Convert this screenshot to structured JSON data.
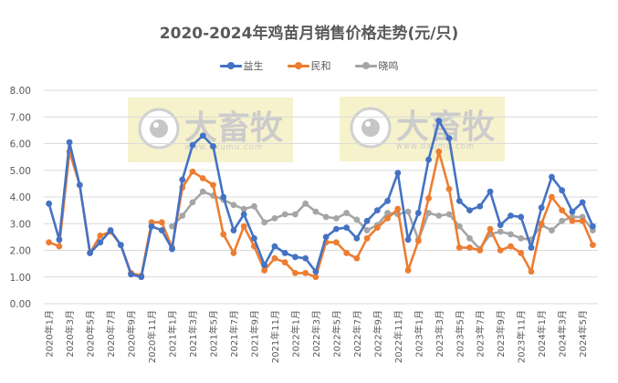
{
  "chart_data": {
    "type": "line",
    "title": "2020-2024年鸡苗月销售价格走势(元/只)",
    "xlabel": "",
    "ylabel": "",
    "ylim": [
      0,
      8
    ],
    "yticks": [
      "0.00",
      "1.00",
      "2.00",
      "3.00",
      "4.00",
      "5.00",
      "6.00",
      "7.00",
      "8.00"
    ],
    "grid": true,
    "legend_position": "top",
    "categories": [
      "2020年1月",
      "2020年2月",
      "2020年3月",
      "2020年4月",
      "2020年5月",
      "2020年6月",
      "2020年7月",
      "2020年8月",
      "2020年9月",
      "2020年10月",
      "2020年11月",
      "2020年12月",
      "2021年1月",
      "2021年2月",
      "2021年3月",
      "2021年4月",
      "2021年5月",
      "2021年6月",
      "2021年7月",
      "2021年8月",
      "2021年9月",
      "2021年10月",
      "2021年11月",
      "2021年12月",
      "2022年1月",
      "2022年2月",
      "2022年3月",
      "2022年4月",
      "2022年5月",
      "2022年6月",
      "2022年7月",
      "2022年8月",
      "2022年9月",
      "2022年10月",
      "2022年11月",
      "2022年12月",
      "2023年1月",
      "2023年2月",
      "2023年3月",
      "2023年4月",
      "2023年5月",
      "2023年6月",
      "2023年7月",
      "2023年8月",
      "2023年9月",
      "2023年10月",
      "2023年11月",
      "2023年12月",
      "2024年1月",
      "2024年2月",
      "2024年3月",
      "2024年4月",
      "2024年5月",
      "2024年6月"
    ],
    "visible_tick_labels": [
      "2020年1月",
      "2020年3月",
      "2020年5月",
      "2020年7月",
      "2020年9月",
      "2020年11月",
      "2021年1月",
      "2021年3月",
      "2021年5月",
      "2021年7月",
      "2021年9月",
      "2021年11月",
      "2022年1月",
      "2022年3月",
      "2022年5月",
      "2022年7月",
      "2022年9月",
      "2022年11月",
      "2023年1月",
      "2023年3月",
      "2023年5月",
      "2023年7月",
      "2023年9月",
      "2023年11月",
      "2024年1月",
      "2024年3月",
      "2024年5月"
    ],
    "series": [
      {
        "name": "益生",
        "color": "#4472C4",
        "values": [
          3.75,
          2.4,
          6.05,
          4.45,
          1.9,
          2.3,
          2.75,
          2.2,
          1.1,
          1.0,
          2.9,
          2.75,
          2.05,
          4.65,
          5.95,
          6.3,
          5.9,
          4.0,
          2.75,
          3.35,
          2.45,
          1.45,
          2.15,
          1.9,
          1.75,
          1.7,
          1.2,
          2.5,
          2.8,
          2.85,
          2.45,
          3.1,
          3.5,
          3.85,
          4.9,
          2.4,
          3.4,
          5.4,
          6.85,
          6.2,
          3.85,
          3.5,
          3.65,
          4.2,
          2.95,
          3.3,
          3.25,
          2.1,
          3.6,
          4.75,
          4.25,
          3.45,
          3.8,
          2.9
        ]
      },
      {
        "name": "民和",
        "color": "#ED7D31",
        "values": [
          2.3,
          2.15,
          5.7,
          4.45,
          1.9,
          2.55,
          2.7,
          2.2,
          1.15,
          1.05,
          3.05,
          3.05,
          2.1,
          4.35,
          4.95,
          4.7,
          4.45,
          2.6,
          1.9,
          2.9,
          2.15,
          1.25,
          1.7,
          1.55,
          1.15,
          1.15,
          1.0,
          2.3,
          2.3,
          1.9,
          1.7,
          2.45,
          2.85,
          3.2,
          3.55,
          1.25,
          2.35,
          3.95,
          5.7,
          4.3,
          2.1,
          2.1,
          2.0,
          2.8,
          2.0,
          2.15,
          1.9,
          1.2,
          3.0,
          4.0,
          3.5,
          3.1,
          3.1,
          2.2
        ]
      },
      {
        "name": "晓鸣",
        "color": "#A5A5A5",
        "values": [
          null,
          null,
          null,
          null,
          null,
          null,
          null,
          null,
          null,
          null,
          null,
          null,
          2.9,
          3.3,
          3.8,
          4.2,
          4.05,
          3.9,
          3.7,
          3.55,
          3.65,
          3.05,
          3.2,
          3.35,
          3.35,
          3.75,
          3.45,
          3.25,
          3.2,
          3.4,
          3.15,
          2.75,
          2.95,
          3.4,
          3.35,
          3.45,
          2.4,
          3.4,
          3.3,
          3.35,
          2.9,
          2.45,
          2.05,
          2.6,
          2.7,
          2.6,
          2.45,
          2.4,
          2.95,
          2.75,
          3.1,
          3.25,
          3.25,
          2.75
        ]
      }
    ]
  },
  "watermark": {
    "brand": "大畜牧",
    "url": "www.dxumu.com"
  },
  "colors": {
    "gridline": "#D9D9D9",
    "text": "#595959",
    "watermark_bg": "#F5F0C4"
  }
}
